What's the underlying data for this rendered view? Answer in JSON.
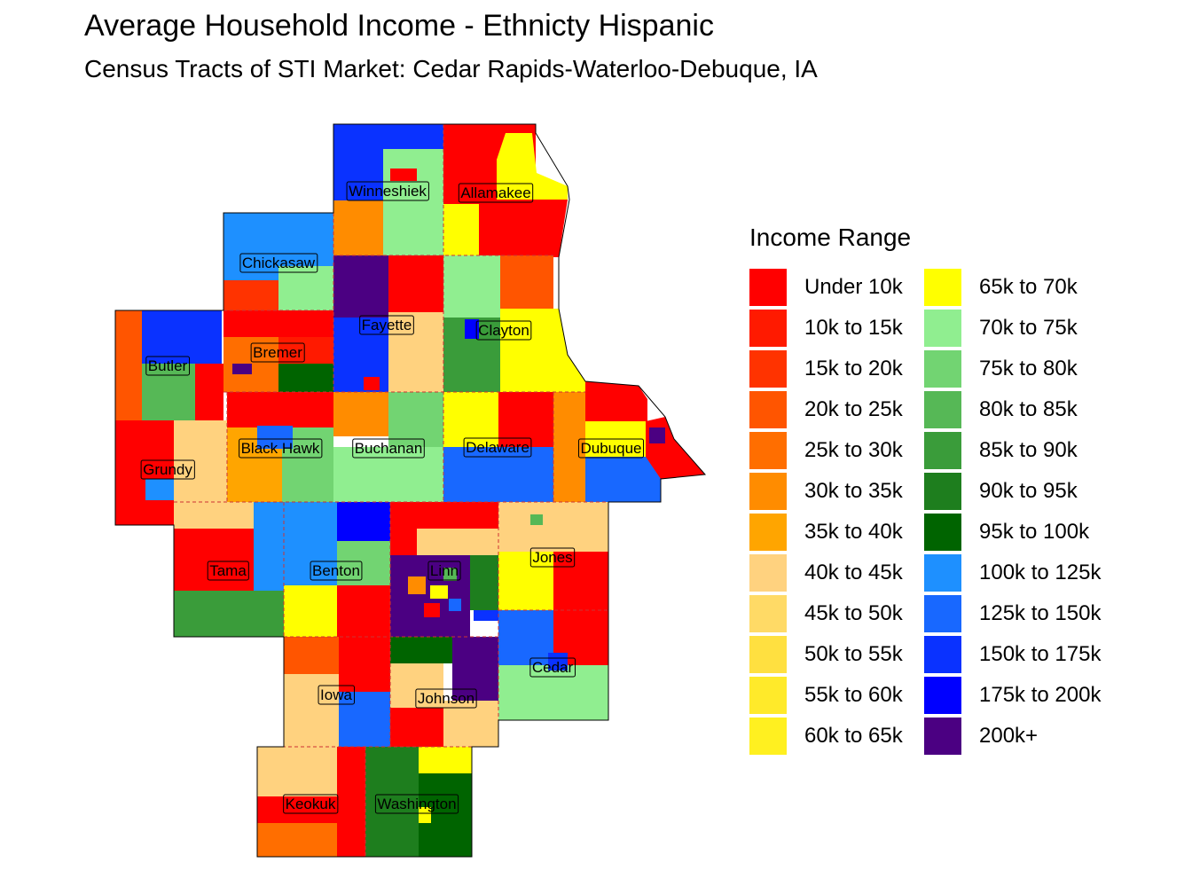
{
  "title": "Average Household Income - Ethnicty Hispanic",
  "subtitle": "Census Tracts of STI Market: Cedar Rapids-Waterloo-Debuque, IA",
  "legend": {
    "title": "Income Range",
    "items": [
      {
        "label": "Under 10k",
        "color": "#FF0000"
      },
      {
        "label": "10k to 15k",
        "color": "#FF1A00"
      },
      {
        "label": "15k to 20k",
        "color": "#FF3300"
      },
      {
        "label": "20k to 25k",
        "color": "#FF5500"
      },
      {
        "label": "25k to 30k",
        "color": "#FF6E00"
      },
      {
        "label": "30k to 35k",
        "color": "#FF8C00"
      },
      {
        "label": "35k to 40k",
        "color": "#FFA500"
      },
      {
        "label": "40k to 45k",
        "color": "#FFD27F"
      },
      {
        "label": "45k to 50k",
        "color": "#FFDA66"
      },
      {
        "label": "50k to 55k",
        "color": "#FFE040"
      },
      {
        "label": "55k to 60k",
        "color": "#FFEA2A"
      },
      {
        "label": "60k to 65k",
        "color": "#FFF020"
      },
      {
        "label": "65k to 70k",
        "color": "#FFFF00"
      },
      {
        "label": "70k to 75k",
        "color": "#90EE90"
      },
      {
        "label": "75k to 80k",
        "color": "#72D472"
      },
      {
        "label": "80k to 85k",
        "color": "#56B856"
      },
      {
        "label": "85k to 90k",
        "color": "#3A9C3A"
      },
      {
        "label": "90k to 95k",
        "color": "#1E7E1E"
      },
      {
        "label": "95k to 100k",
        "color": "#006400"
      },
      {
        "label": "100k to 125k",
        "color": "#1E90FF"
      },
      {
        "label": "125k to 150k",
        "color": "#1868FF"
      },
      {
        "label": "150k to 175k",
        "color": "#0A32FF"
      },
      {
        "label": "175k to 200k",
        "color": "#0000FF"
      },
      {
        "label": "200k+",
        "color": "#4B0082"
      }
    ]
  },
  "counties": [
    {
      "name": "Winneshiek"
    },
    {
      "name": "Allamakee"
    },
    {
      "name": "Chickasaw"
    },
    {
      "name": "Fayette"
    },
    {
      "name": "Clayton"
    },
    {
      "name": "Bremer"
    },
    {
      "name": "Butler"
    },
    {
      "name": "Black Hawk"
    },
    {
      "name": "Buchanan"
    },
    {
      "name": "Delaware"
    },
    {
      "name": "Dubuque"
    },
    {
      "name": "Grundy"
    },
    {
      "name": "Tama"
    },
    {
      "name": "Benton"
    },
    {
      "name": "Linn"
    },
    {
      "name": "Jones"
    },
    {
      "name": "Cedar"
    },
    {
      "name": "Iowa"
    },
    {
      "name": "Johnson"
    },
    {
      "name": "Keokuk"
    },
    {
      "name": "Washington"
    }
  ]
}
